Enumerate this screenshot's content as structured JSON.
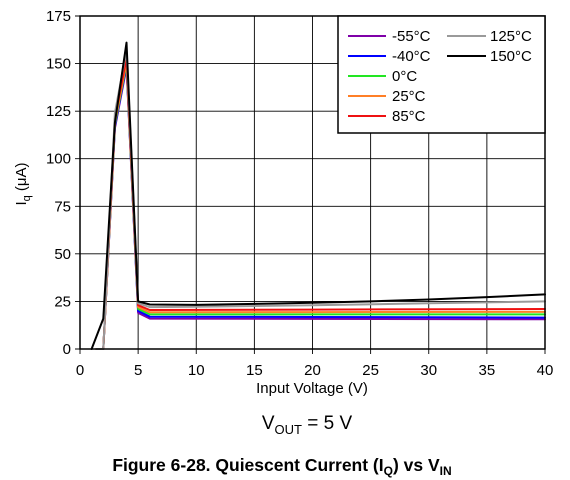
{
  "chart_data": {
    "type": "line",
    "xlabel": "Input Voltage (V)",
    "ylabel": {
      "base": "I",
      "sub": "q",
      "rest": " (μA)"
    },
    "xlim": [
      0,
      40
    ],
    "ylim": [
      0,
      175
    ],
    "xticks": [
      0,
      5,
      10,
      15,
      20,
      25,
      30,
      35,
      40
    ],
    "yticks": [
      0,
      25,
      50,
      75,
      100,
      125,
      150,
      175
    ],
    "grid": true,
    "legend": "top-right",
    "series": [
      {
        "name": "-55°C",
        "color": "#7f00a8",
        "x": [
          1.4,
          2,
          3,
          4,
          5,
          6,
          20,
          40
        ],
        "y": [
          0,
          0,
          116,
          148,
          19,
          16,
          15.8,
          15.6
        ]
      },
      {
        "name": "-40°C",
        "color": "#0000ff",
        "x": [
          1.4,
          2,
          3,
          4,
          5,
          6,
          20,
          40
        ],
        "y": [
          0,
          0,
          117,
          149,
          20,
          17,
          16.8,
          16.5
        ]
      },
      {
        "name": "0°C",
        "color": "#22e622",
        "x": [
          1.4,
          2,
          3,
          4,
          5,
          6,
          20,
          40
        ],
        "y": [
          0,
          0,
          118,
          150,
          21,
          18.2,
          18.2,
          18.2
        ]
      },
      {
        "name": "25°C",
        "color": "#ff7f27",
        "x": [
          1.4,
          2,
          3,
          4,
          5,
          6,
          20,
          40
        ],
        "y": [
          0,
          0,
          119,
          151,
          22,
          19.3,
          19.4,
          19.5
        ]
      },
      {
        "name": "85°C",
        "color": "#ee1111",
        "x": [
          1.4,
          2,
          3,
          4,
          5,
          6,
          20,
          40
        ],
        "y": [
          0,
          0,
          121,
          153,
          23,
          20.5,
          20.7,
          21
        ]
      },
      {
        "name": "125°C",
        "color": "#9a9a9a",
        "x": [
          1.4,
          2,
          3,
          4,
          5,
          6,
          10,
          20,
          30,
          40
        ],
        "y": [
          0,
          0,
          124,
          157,
          24,
          22,
          22.2,
          23,
          24,
          25
        ]
      },
      {
        "name": "150°C",
        "color": "#000000",
        "x": [
          1,
          2,
          3,
          4,
          5,
          6,
          10,
          20,
          25,
          30,
          35,
          40
        ],
        "y": [
          0,
          16,
          119,
          161,
          25,
          23.4,
          23.2,
          24.3,
          25,
          26,
          27.3,
          28.7
        ]
      }
    ]
  },
  "condition": {
    "base": "V",
    "sub": "OUT",
    "rest": " = 5 V"
  },
  "caption": {
    "part1": "Figure 6-28. Quiescent Current (I",
    "sub1": "Q",
    "part2": ") vs V",
    "sub2": "IN"
  }
}
